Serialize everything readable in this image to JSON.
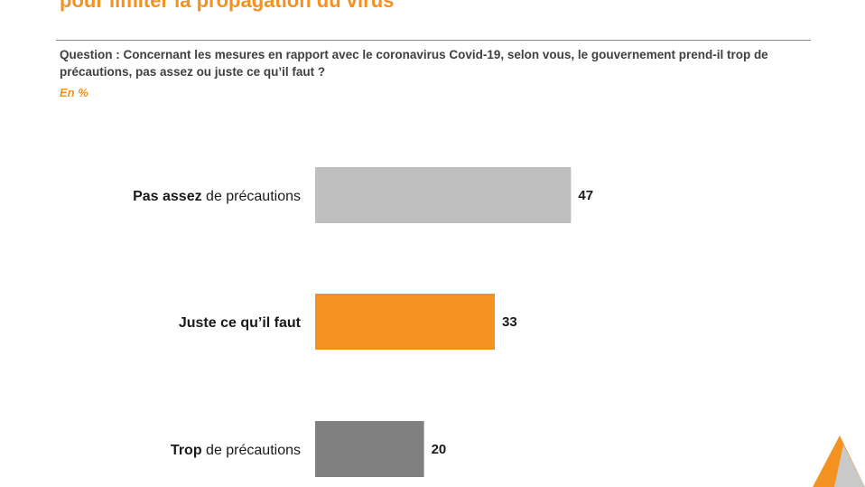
{
  "slide": {
    "title": "pour limiter la propagation du virus",
    "question": "Question : Concernant les mesures en rapport avec le coronavirus Covid-19, selon vous, le gouvernement prend-il trop de précautions, pas assez ou juste ce qu’il faut ?",
    "unit": "En %"
  },
  "colors": {
    "accent": "#f39221",
    "bar_light_grey": "#bfbfbf",
    "bar_orange": "#f39221",
    "bar_dark_grey": "#808080"
  },
  "chart_data": {
    "type": "bar",
    "orientation": "horizontal",
    "title": "",
    "xlabel": "",
    "ylabel": "",
    "unit": "En %",
    "xlim": [
      0,
      100
    ],
    "grid": false,
    "legend": "none",
    "categories": [
      {
        "bold": "Pas assez",
        "rest": " de précautions"
      },
      {
        "bold": "Juste ce qu’il faut",
        "rest": ""
      },
      {
        "bold": "Trop",
        "rest": " de précautions"
      }
    ],
    "values": [
      47,
      33,
      20
    ],
    "bar_colors": [
      "#bfbfbf",
      "#f39221",
      "#808080"
    ]
  }
}
